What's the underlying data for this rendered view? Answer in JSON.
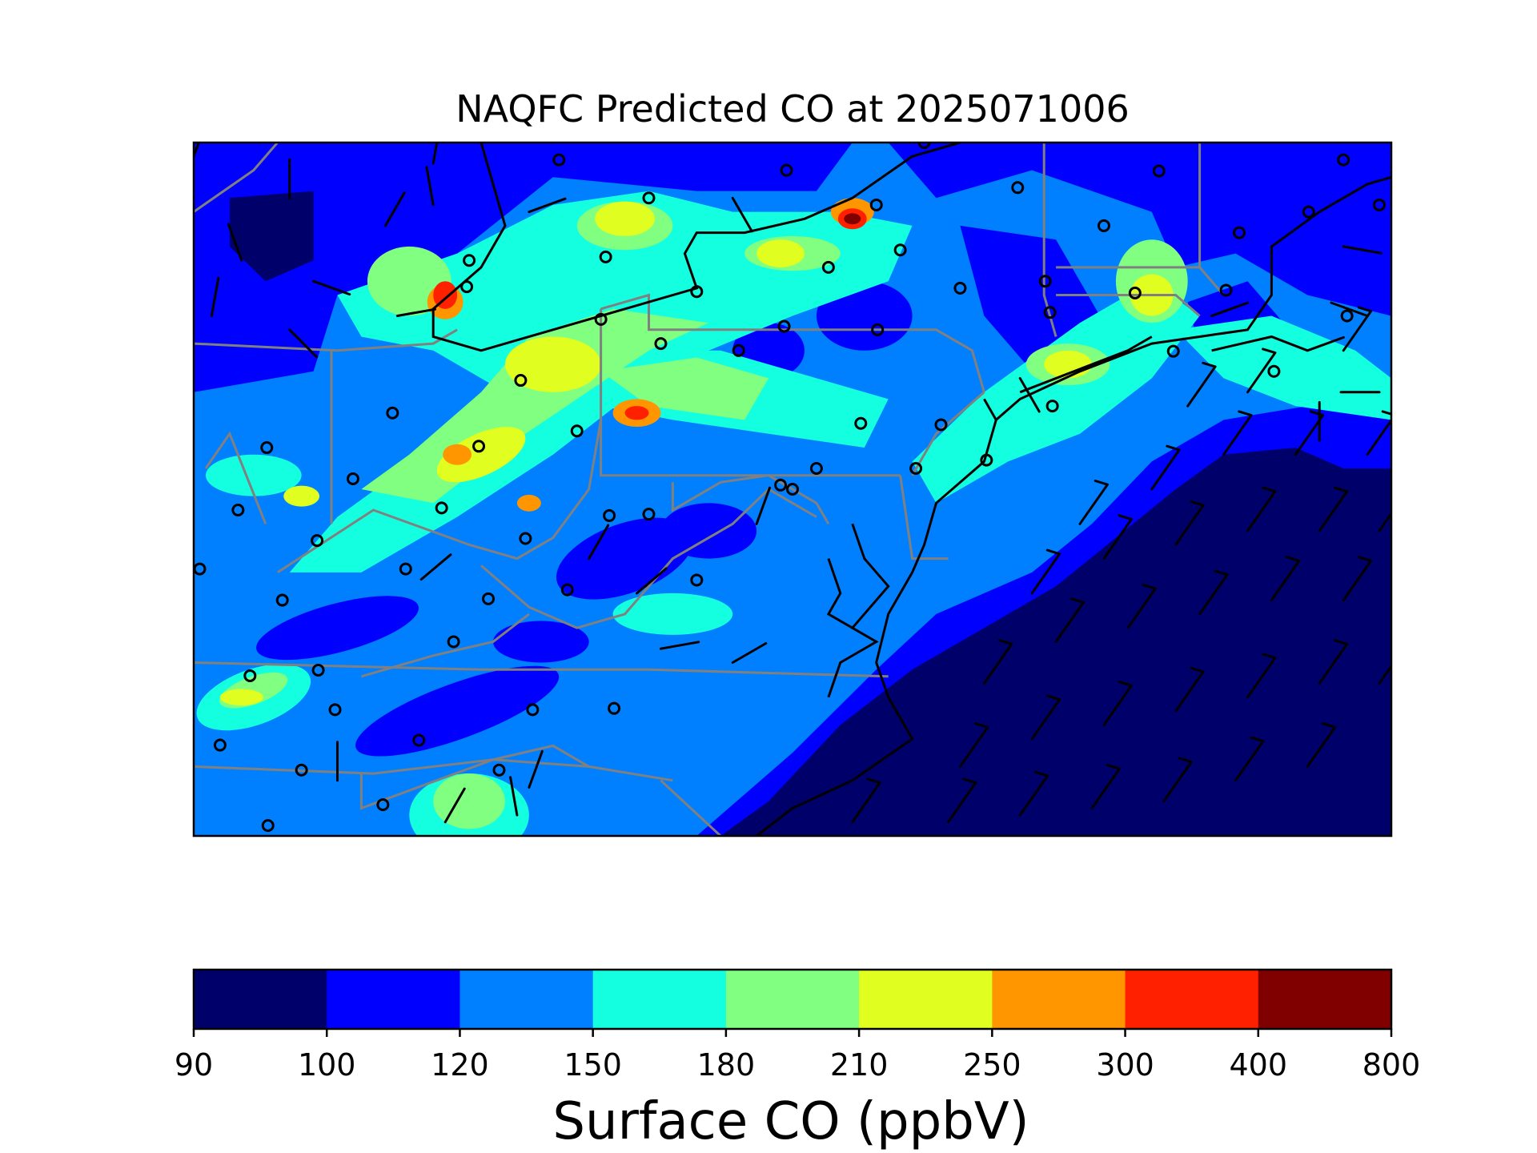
{
  "title": "NAQFC Predicted CO at 2025071006",
  "colorbar": {
    "label": "Surface CO (ppbV)",
    "bounds": [
      "90",
      "100",
      "120",
      "150",
      "180",
      "210",
      "250",
      "300",
      "400",
      "800"
    ],
    "colors": [
      "#00006a",
      "#0000ff",
      "#0080ff",
      "#14ffdf",
      "#80ff80",
      "#e0ff20",
      "#ff9600",
      "#ff2000",
      "#800000"
    ]
  },
  "map": {
    "field": "Surface CO",
    "units": "ppbV",
    "valid_time": "2025071006",
    "features": [
      "CO concentration field",
      "state boundaries",
      "coastlines",
      "monitor-site circles",
      "wind barbs"
    ]
  }
}
